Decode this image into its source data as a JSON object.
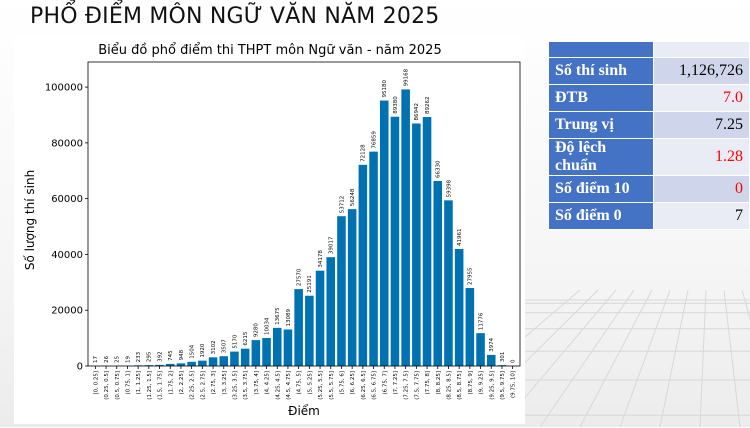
{
  "page_title": "PHỔ ĐIỂM MÔN NGỮ VĂN NĂM 2025",
  "stats": [
    {
      "label": "Số thí sinh",
      "value": "1,126,726",
      "highlight": false
    },
    {
      "label": "ĐTB",
      "value": "7.0",
      "highlight": true
    },
    {
      "label": "Trung vị",
      "value": "7.25",
      "highlight": false
    },
    {
      "label": "Độ lệch chuẩn",
      "value": "1.28",
      "highlight": true
    },
    {
      "label": "Số điểm 10",
      "value": "0",
      "highlight": true
    },
    {
      "label": "Số điểm 0",
      "value": "7",
      "highlight": false
    }
  ],
  "colors": {
    "bar": "#0072b2",
    "table_header": "#4472c4",
    "highlight": "#ff0000"
  },
  "chart_data": {
    "type": "bar",
    "title": "Biểu đồ phổ điểm thi THPT môn Ngữ văn - năm 2025",
    "xlabel": "Điểm",
    "ylabel": "Số lượng thí sinh",
    "ylim": [
      0,
      109000
    ],
    "yticks": [
      0,
      20000,
      40000,
      60000,
      80000,
      100000
    ],
    "categories": [
      "[0, 0.25]",
      "(0.25, 0.5]",
      "(0.5, 0.75]",
      "(0.75, 1]",
      "(1, 1.25]",
      "(1.25, 1.5]",
      "(1.5, 1.75]",
      "(1.75, 2]",
      "(2, 2.25]",
      "(2.25, 2.5]",
      "(2.5, 2.75]",
      "(2.75, 3]",
      "(3, 3.25]",
      "(3.25, 3.5]",
      "(3.5, 3.75]",
      "(3.75, 4]",
      "(4, 4.25]",
      "(4.25, 4.5]",
      "(4.5, 4.75]",
      "(4.75, 5]",
      "(5, 5.25]",
      "(5.25, 5.5]",
      "(5.5, 5.75]",
      "(5.75, 6]",
      "(6, 6.25]",
      "(6.25, 6.5]",
      "(6.5, 6.75]",
      "(6.75, 7]",
      "(7, 7.25]",
      "(7.25, 7.5]",
      "(7.5, 7.75]",
      "(7.75, 8]",
      "(8, 8.25]",
      "(8.25, 8.5]",
      "(8.5, 8.75]",
      "(8.75, 9]",
      "(9, 9.25]",
      "(9.25, 9.5]",
      "(9.5, 9.75]",
      "(9.75, 10]"
    ],
    "values": [
      17,
      26,
      25,
      19,
      233,
      295,
      392,
      745,
      948,
      1504,
      1920,
      3102,
      3507,
      5170,
      6215,
      9280,
      10034,
      13675,
      13089,
      27570,
      25191,
      34178,
      39017,
      53712,
      56248,
      72128,
      76859,
      95180,
      89380,
      99168,
      86942,
      89262,
      66330,
      59398,
      41961,
      27955,
      11776,
      3974,
      301,
      0
    ],
    "data_labels": true,
    "grid": false,
    "legend": "none"
  }
}
